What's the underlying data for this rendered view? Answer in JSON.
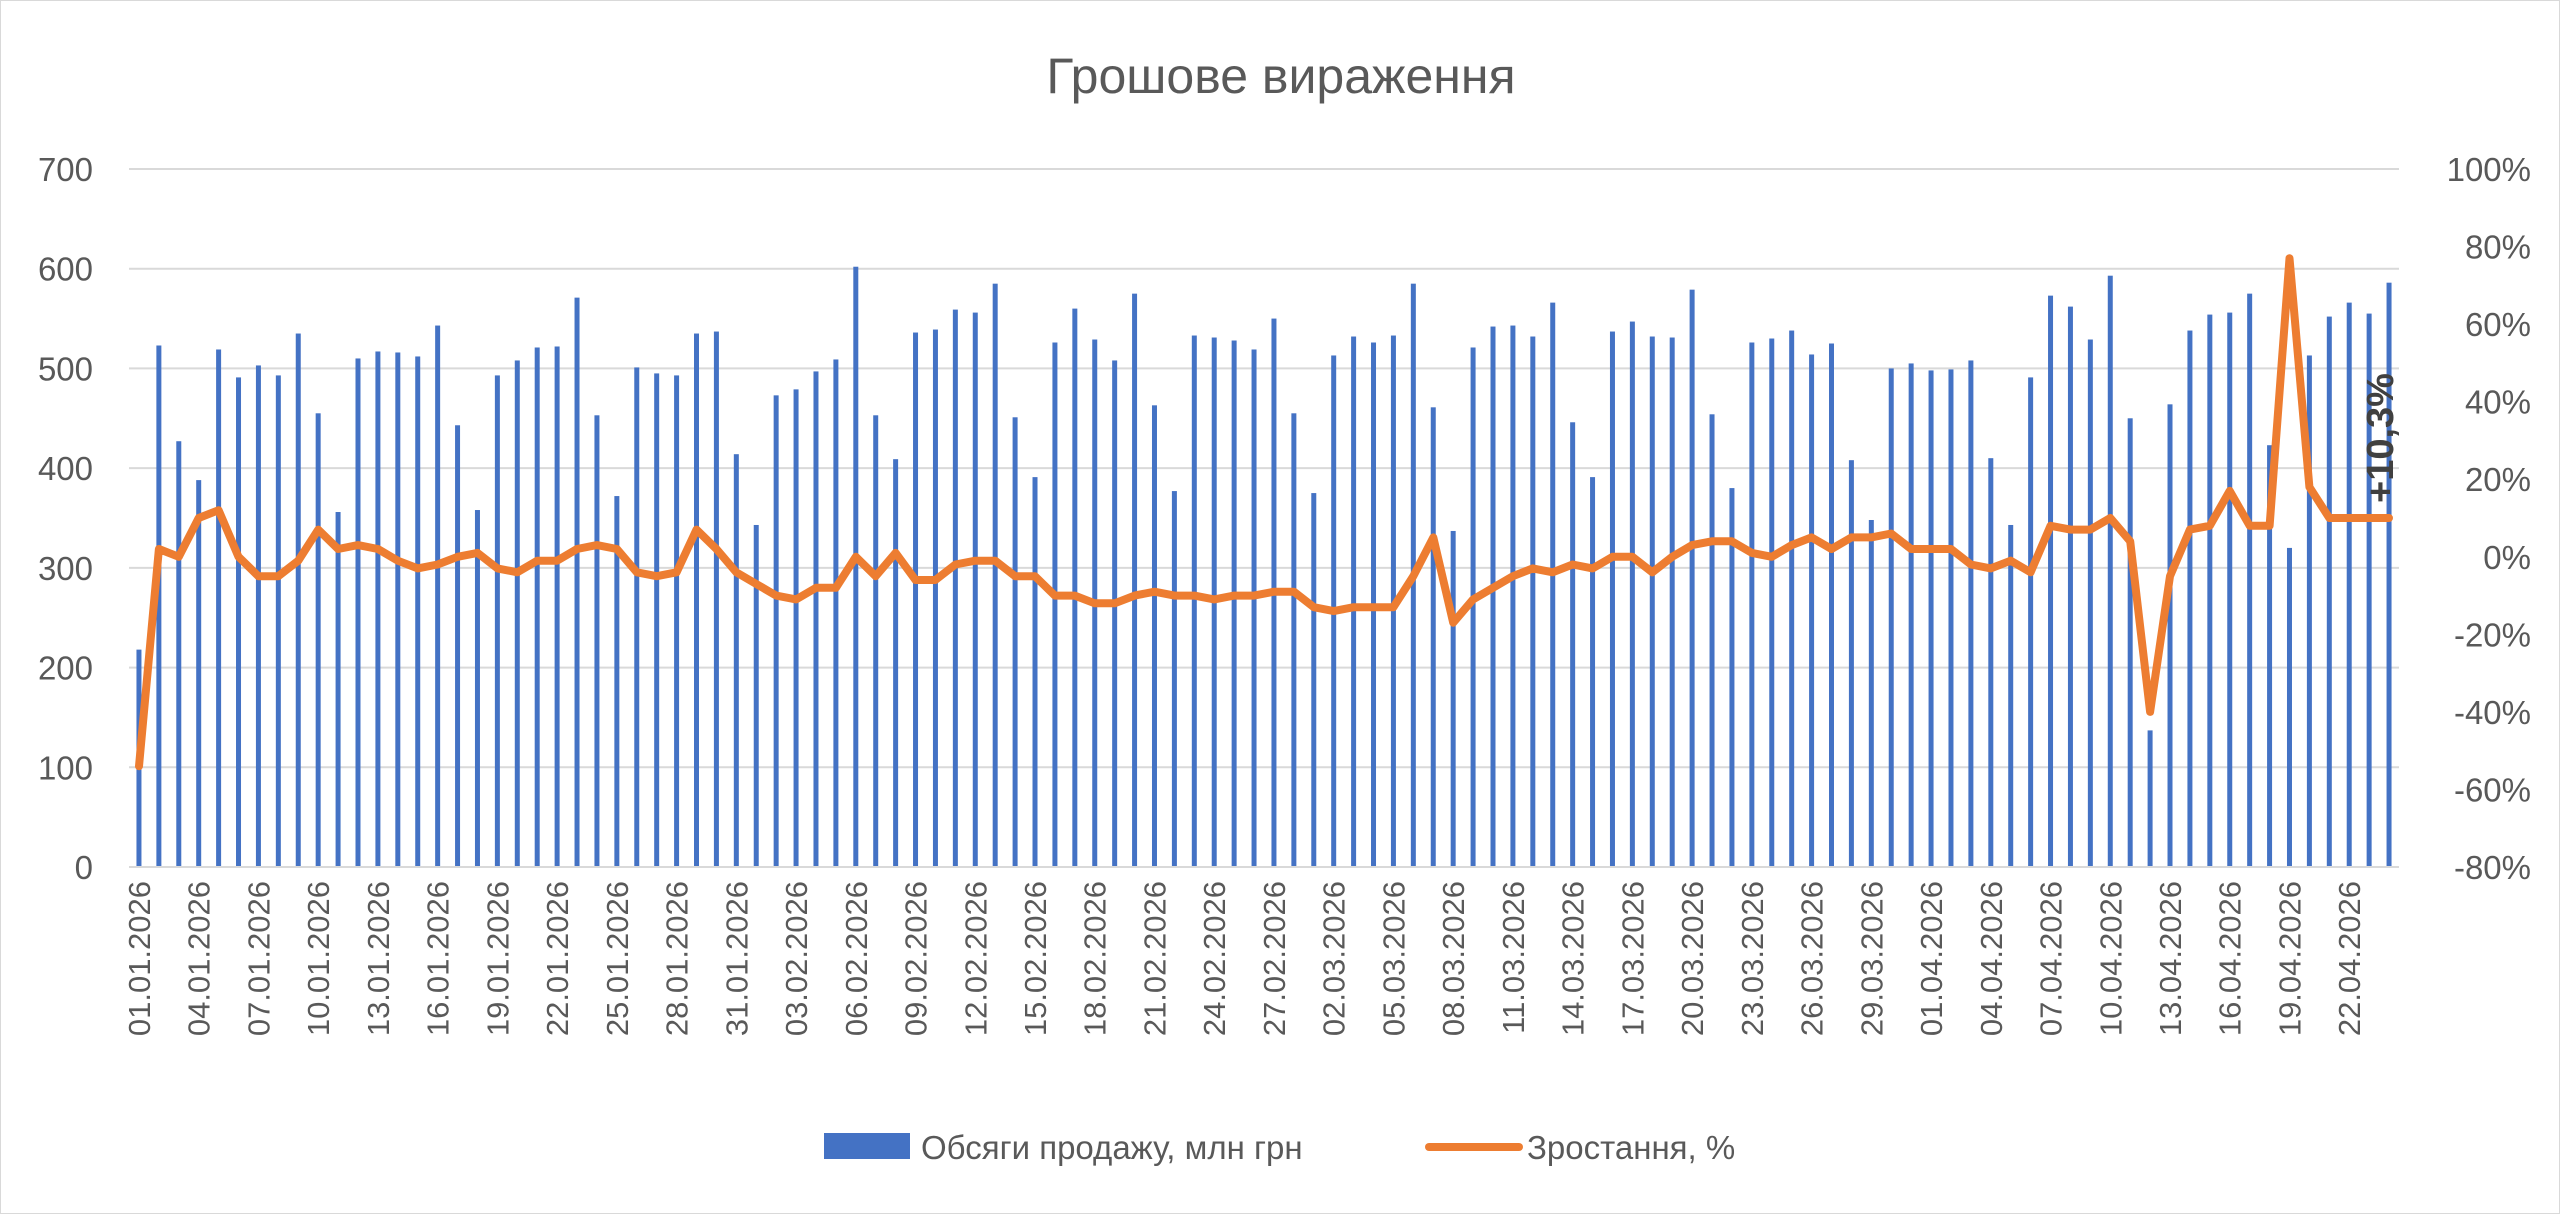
{
  "chart_data": {
    "type": "bar",
    "title": "Грошове вираження",
    "colors": {
      "bars": "#4472c4",
      "line": "#ed7d31",
      "grid": "#d9d9d9",
      "text": "#595959"
    },
    "y_left": {
      "ylim": [
        0,
        700
      ],
      "ticks": [
        "0",
        "100",
        "200",
        "300",
        "400",
        "500",
        "600",
        "700"
      ]
    },
    "y_right": {
      "ylim": [
        -80,
        100
      ],
      "ticks": [
        "-80%",
        "-60%",
        "-40%",
        "-20%",
        "0%",
        "20%",
        "40%",
        "60%",
        "80%",
        "100%"
      ]
    },
    "x_tick_labels": [
      "01.01.2026",
      "04.01.2026",
      "07.01.2026",
      "10.01.2026",
      "13.01.2026",
      "16.01.2026",
      "19.01.2026",
      "22.01.2026",
      "25.01.2026",
      "28.01.2026",
      "31.01.2026",
      "03.02.2026",
      "06.02.2026",
      "09.02.2026",
      "12.02.2026",
      "15.02.2026",
      "18.02.2026",
      "21.02.2026",
      "24.02.2026",
      "27.02.2026",
      "02.03.2026",
      "05.03.2026",
      "08.03.2026",
      "11.03.2026",
      "14.03.2026",
      "17.03.2026",
      "20.03.2026",
      "23.03.2026",
      "26.03.2026",
      "29.03.2026",
      "01.04.2026",
      "04.04.2026",
      "07.04.2026",
      "10.04.2026",
      "13.04.2026",
      "16.04.2026",
      "19.04.2026",
      "22.04.2026"
    ],
    "x_start": "01.01.2026",
    "x_end": "24.04.2026",
    "series": [
      {
        "name": "Обсяги продажу, млн грн",
        "type": "bar",
        "axis": "left",
        "values": [
          218,
          523,
          427,
          388,
          519,
          491,
          503,
          493,
          535,
          455,
          356,
          510,
          517,
          516,
          512,
          543,
          443,
          358,
          493,
          508,
          521,
          522,
          571,
          453,
          372,
          501,
          495,
          493,
          535,
          537,
          414,
          343,
          473,
          479,
          497,
          509,
          602,
          453,
          409,
          536,
          539,
          559,
          556,
          585,
          451,
          391,
          526,
          560,
          529,
          508,
          575,
          463,
          377,
          533,
          531,
          528,
          519,
          550,
          455,
          375,
          513,
          532,
          526,
          533,
          585,
          461,
          337,
          521,
          542,
          543,
          532,
          566,
          446,
          391,
          537,
          547,
          532,
          531,
          579,
          454,
          380,
          526,
          530,
          538,
          514,
          525,
          408,
          348,
          500,
          505,
          498,
          499,
          508,
          410,
          343,
          491,
          573,
          562,
          529,
          593,
          450,
          137,
          464,
          538,
          554,
          556,
          575,
          423,
          320,
          513,
          552,
          566,
          555,
          586
        ]
      },
      {
        "name": "Зростання, %",
        "type": "line",
        "axis": "right",
        "values": [
          -54,
          2,
          0,
          10,
          12,
          0,
          -5,
          -5,
          -1,
          7,
          2,
          3,
          2,
          -1,
          -3,
          -2,
          0,
          1,
          -3,
          -4,
          -1,
          -1,
          2,
          3,
          2,
          -4,
          -5,
          -4,
          7,
          2,
          -4,
          -7,
          -10,
          -11,
          -8,
          -8,
          0,
          -5,
          1,
          -6,
          -6,
          -2,
          -1,
          -1,
          -5,
          -5,
          -10,
          -10,
          -12,
          -12,
          -10,
          -9,
          -10,
          -10,
          -11,
          -10,
          -10,
          -9,
          -9,
          -13,
          -14,
          -13,
          -13,
          -13,
          -5,
          5,
          -17,
          -11,
          -8,
          -5,
          -3,
          -4,
          -2,
          -3,
          0,
          0,
          -4,
          0,
          3,
          4,
          4,
          1,
          0,
          3,
          5,
          2,
          5,
          5,
          6,
          2,
          2,
          2,
          -2,
          -3,
          -1,
          -4,
          8,
          7,
          7,
          10,
          4,
          -40,
          -5,
          7,
          8,
          17,
          8,
          8,
          77,
          18,
          10,
          10,
          10,
          10
        ]
      }
    ],
    "annotation": "+10,3%",
    "legend": "bottom"
  }
}
